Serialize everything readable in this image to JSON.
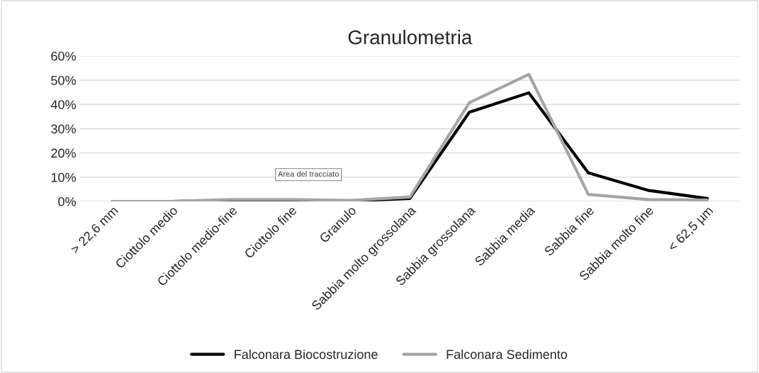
{
  "chart_data": {
    "type": "line",
    "title": "Granulometria",
    "categories": [
      "> 22,6 mm",
      "Ciottolo medio",
      "Ciottolo medio-fine",
      "Ciottolo fine",
      "Granulo",
      "Sabbia molto grossolana",
      "Sabbia grossolana",
      "Sabbia media",
      "Sabbia fine",
      "Sabbia molto fine",
      "< 62,5 µm"
    ],
    "series": [
      {
        "name": "Falconara Biocostruzione",
        "color": "#000000",
        "values": [
          0,
          0,
          0.2,
          0.2,
          0.2,
          1.2,
          36.8,
          44.8,
          11.8,
          4.6,
          1.2
        ]
      },
      {
        "name": "Falconara Sedimento",
        "color": "#a5a5a5",
        "values": [
          0,
          0,
          0.8,
          0.8,
          0.4,
          1.8,
          40.7,
          52.4,
          2.9,
          0.8,
          0.6
        ]
      }
    ],
    "ylim": [
      0,
      60
    ],
    "yticks": [
      {
        "value": 0,
        "label": "0%"
      },
      {
        "value": 10,
        "label": "10%"
      },
      {
        "value": 20,
        "label": "20%"
      },
      {
        "value": 30,
        "label": "30%"
      },
      {
        "value": 40,
        "label": "40%"
      },
      {
        "value": 50,
        "label": "50%"
      },
      {
        "value": 60,
        "label": "60%"
      }
    ],
    "grid": "y",
    "legend": "bottom",
    "marker": "none",
    "line_style": "solid",
    "annotations": [
      "Area del tracciato"
    ]
  }
}
